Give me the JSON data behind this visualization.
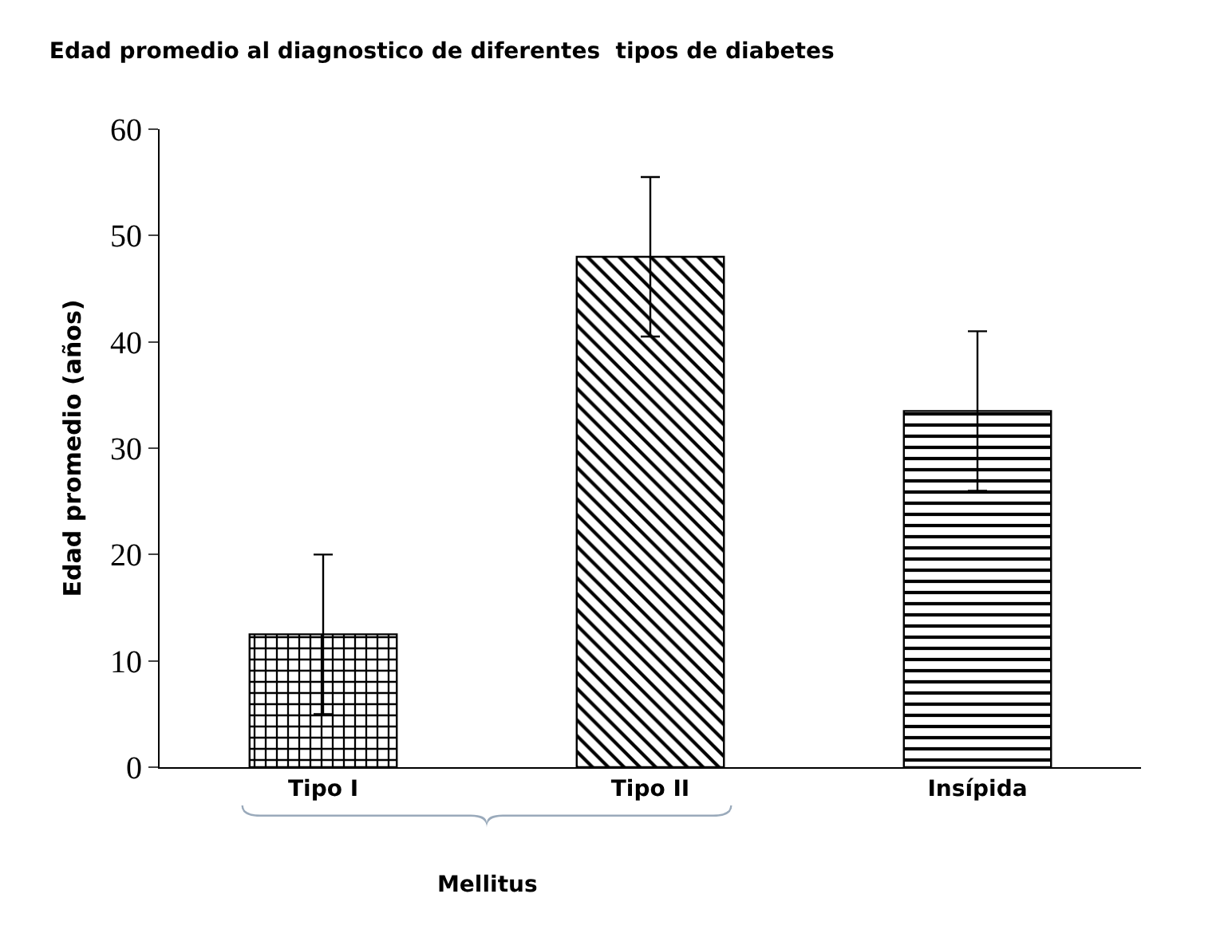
{
  "chart_data": {
    "type": "bar",
    "title": "Edad promedio al diagnostico de diferentes  tipos de diabetes",
    "ylabel": "Edad promedio (años)",
    "categories": [
      "Tipo I",
      "Tipo II",
      "Insípida"
    ],
    "values": [
      12.5,
      48,
      33.5
    ],
    "errors": [
      7.5,
      7.5,
      7.5
    ],
    "colors": [
      "#000000",
      "#000000",
      "#000000"
    ],
    "ylim": [
      0,
      60
    ],
    "yticks": [
      0,
      10,
      20,
      30,
      40,
      50,
      60
    ],
    "grid": false,
    "annotations": [
      "Mellitus"
    ]
  }
}
